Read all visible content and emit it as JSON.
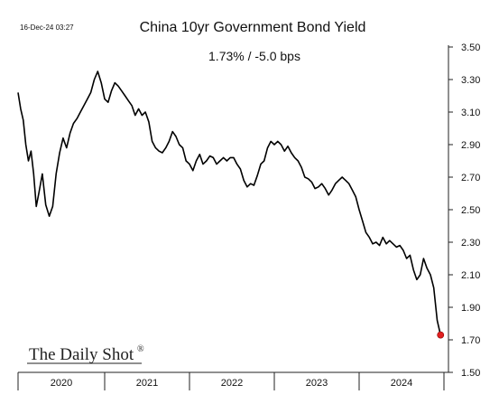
{
  "timestamp": "16-Dec-24 03:27",
  "title": "China 10yr Government Bond Yield",
  "subtitle": "1.73%  /  -5.0 bps",
  "watermark": "The Daily Shot",
  "watermark_mark": "®",
  "colors": {
    "line": "#000000",
    "last_point": "#e02020",
    "axis": "#222222"
  },
  "chart_data": {
    "type": "line",
    "title": "China 10yr Government Bond Yield",
    "xlabel": "",
    "ylabel": "",
    "ylim": [
      1.5,
      3.5
    ],
    "yticks": [
      3.5,
      3.3,
      3.1,
      2.9,
      2.7,
      2.5,
      2.3,
      2.1,
      1.9,
      1.7,
      1.5
    ],
    "ytick_labels": [
      "3.50",
      "3.30",
      "3.10",
      "2.90",
      "2.70",
      "2.50",
      "2.30",
      "2.10",
      "1.90",
      "1.70",
      "1.50"
    ],
    "year_labels": [
      "2020",
      "2021",
      "2022",
      "2023",
      "2024"
    ],
    "xlim": [
      2020.0,
      2024.96
    ],
    "grid": false,
    "legend": "none",
    "series": [
      {
        "values": [
          [
            2020.0,
            3.22
          ],
          [
            2020.03,
            3.12
          ],
          [
            2020.06,
            3.05
          ],
          [
            2020.09,
            2.9
          ],
          [
            2020.12,
            2.8
          ],
          [
            2020.15,
            2.86
          ],
          [
            2020.18,
            2.72
          ],
          [
            2020.21,
            2.52
          ],
          [
            2020.24,
            2.6
          ],
          [
            2020.28,
            2.72
          ],
          [
            2020.32,
            2.53
          ],
          [
            2020.36,
            2.46
          ],
          [
            2020.4,
            2.52
          ],
          [
            2020.44,
            2.72
          ],
          [
            2020.48,
            2.85
          ],
          [
            2020.52,
            2.94
          ],
          [
            2020.56,
            2.88
          ],
          [
            2020.6,
            2.97
          ],
          [
            2020.64,
            3.03
          ],
          [
            2020.68,
            3.06
          ],
          [
            2020.72,
            3.1
          ],
          [
            2020.76,
            3.14
          ],
          [
            2020.8,
            3.18
          ],
          [
            2020.84,
            3.22
          ],
          [
            2020.88,
            3.3
          ],
          [
            2020.92,
            3.35
          ],
          [
            2020.96,
            3.28
          ],
          [
            2021.0,
            3.18
          ],
          [
            2021.04,
            3.16
          ],
          [
            2021.08,
            3.23
          ],
          [
            2021.12,
            3.28
          ],
          [
            2021.16,
            3.26
          ],
          [
            2021.2,
            3.23
          ],
          [
            2021.24,
            3.2
          ],
          [
            2021.28,
            3.17
          ],
          [
            2021.32,
            3.14
          ],
          [
            2021.36,
            3.08
          ],
          [
            2021.4,
            3.12
          ],
          [
            2021.44,
            3.08
          ],
          [
            2021.48,
            3.1
          ],
          [
            2021.52,
            3.04
          ],
          [
            2021.56,
            2.92
          ],
          [
            2021.6,
            2.88
          ],
          [
            2021.64,
            2.86
          ],
          [
            2021.68,
            2.85
          ],
          [
            2021.72,
            2.88
          ],
          [
            2021.76,
            2.92
          ],
          [
            2021.8,
            2.98
          ],
          [
            2021.84,
            2.95
          ],
          [
            2021.88,
            2.9
          ],
          [
            2021.92,
            2.88
          ],
          [
            2021.96,
            2.8
          ],
          [
            2022.0,
            2.78
          ],
          [
            2022.04,
            2.74
          ],
          [
            2022.08,
            2.8
          ],
          [
            2022.12,
            2.84
          ],
          [
            2022.16,
            2.78
          ],
          [
            2022.2,
            2.8
          ],
          [
            2022.24,
            2.83
          ],
          [
            2022.28,
            2.82
          ],
          [
            2022.32,
            2.78
          ],
          [
            2022.36,
            2.8
          ],
          [
            2022.4,
            2.82
          ],
          [
            2022.44,
            2.8
          ],
          [
            2022.48,
            2.82
          ],
          [
            2022.52,
            2.82
          ],
          [
            2022.56,
            2.78
          ],
          [
            2022.6,
            2.75
          ],
          [
            2022.64,
            2.68
          ],
          [
            2022.68,
            2.64
          ],
          [
            2022.72,
            2.66
          ],
          [
            2022.76,
            2.65
          ],
          [
            2022.8,
            2.71
          ],
          [
            2022.84,
            2.78
          ],
          [
            2022.88,
            2.8
          ],
          [
            2022.92,
            2.88
          ],
          [
            2022.96,
            2.92
          ],
          [
            2023.0,
            2.9
          ],
          [
            2023.04,
            2.92
          ],
          [
            2023.08,
            2.9
          ],
          [
            2023.12,
            2.86
          ],
          [
            2023.16,
            2.89
          ],
          [
            2023.2,
            2.85
          ],
          [
            2023.24,
            2.82
          ],
          [
            2023.28,
            2.8
          ],
          [
            2023.32,
            2.76
          ],
          [
            2023.36,
            2.7
          ],
          [
            2023.4,
            2.69
          ],
          [
            2023.44,
            2.67
          ],
          [
            2023.48,
            2.63
          ],
          [
            2023.52,
            2.64
          ],
          [
            2023.56,
            2.66
          ],
          [
            2023.6,
            2.63
          ],
          [
            2023.64,
            2.59
          ],
          [
            2023.68,
            2.62
          ],
          [
            2023.72,
            2.66
          ],
          [
            2023.76,
            2.68
          ],
          [
            2023.8,
            2.7
          ],
          [
            2023.84,
            2.68
          ],
          [
            2023.88,
            2.66
          ],
          [
            2023.92,
            2.62
          ],
          [
            2023.96,
            2.58
          ],
          [
            2024.0,
            2.5
          ],
          [
            2024.04,
            2.43
          ],
          [
            2024.08,
            2.36
          ],
          [
            2024.12,
            2.33
          ],
          [
            2024.16,
            2.29
          ],
          [
            2024.2,
            2.3
          ],
          [
            2024.24,
            2.28
          ],
          [
            2024.28,
            2.33
          ],
          [
            2024.32,
            2.29
          ],
          [
            2024.36,
            2.31
          ],
          [
            2024.4,
            2.29
          ],
          [
            2024.44,
            2.27
          ],
          [
            2024.48,
            2.28
          ],
          [
            2024.52,
            2.25
          ],
          [
            2024.56,
            2.2
          ],
          [
            2024.6,
            2.22
          ],
          [
            2024.64,
            2.13
          ],
          [
            2024.68,
            2.07
          ],
          [
            2024.72,
            2.1
          ],
          [
            2024.76,
            2.2
          ],
          [
            2024.8,
            2.14
          ],
          [
            2024.84,
            2.1
          ],
          [
            2024.88,
            2.02
          ],
          [
            2024.92,
            1.82
          ],
          [
            2024.96,
            1.73
          ]
        ]
      }
    ],
    "last_value": 1.73
  }
}
